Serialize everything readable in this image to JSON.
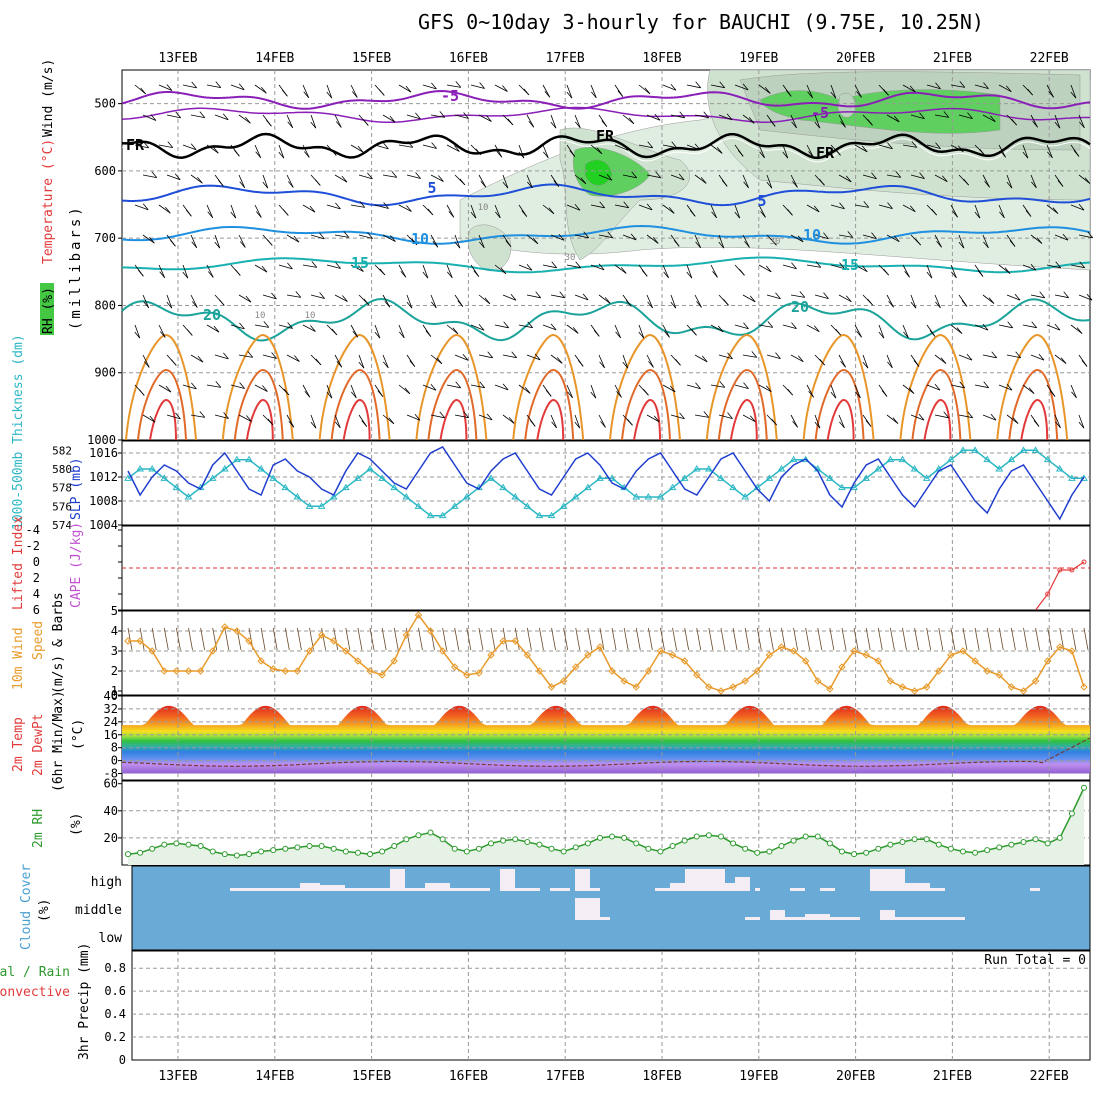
{
  "title": "GFS 0~10day 3-hourly for BAUCHI (9.75E, 10.25N)",
  "dates": [
    "13FEB",
    "14FEB",
    "15FEB",
    "16FEB",
    "17FEB",
    "18FEB",
    "19FEB",
    "20FEB",
    "21FEB",
    "22FEB"
  ],
  "panels": {
    "upper": {
      "ylabel_rh": "RH (%)",
      "ylabel_temp": "Temperature (°C)",
      "ylabel_wind": "Wind (m/s)",
      "ylabel_p": "(millibars)",
      "yticks": [
        500,
        600,
        700,
        800,
        900,
        1000
      ],
      "contour_labels": [
        "-5",
        "-5",
        "FR",
        "FR",
        "FR",
        "5",
        "5",
        "10",
        "10",
        "15",
        "15",
        "20",
        "20",
        "10",
        "10",
        "10",
        "30",
        "30"
      ]
    },
    "slp": {
      "ylabel_thick": "1000-500mb Thickness (dm)",
      "ylabel_slp": "SLP (mb)",
      "thick_ticks": [
        "582",
        "580",
        "578",
        "576",
        "574"
      ],
      "slp_ticks": [
        "1016",
        "1012",
        "1008",
        "1004"
      ]
    },
    "cape": {
      "ylabel_li": "Lifted Index",
      "ylabel_cape": "CAPE (J/kg)",
      "ticks": [
        "-4",
        "-2",
        "0",
        "2",
        "4",
        "6"
      ]
    },
    "wind10": {
      "ylabel": "10m Wind",
      "ylabel2": "Speed",
      "ylabel3": "(m/s) & Barbs",
      "ticks": [
        "5",
        "4",
        "3",
        "2",
        "1",
        "0"
      ]
    },
    "temp2m": {
      "ylabel1": "2m Temp",
      "ylabel2": "2m DewPt",
      "ylabel3": "(6hr Min/Max)",
      "ylabel4": "(°C)",
      "ticks": [
        "40",
        "32",
        "24",
        "16",
        "8",
        "0",
        "-8"
      ]
    },
    "rh2m": {
      "ylabel1": "2m RH",
      "ylabel2": "(%)",
      "ticks": [
        "60",
        "40",
        "20"
      ]
    },
    "cloud": {
      "ylabel1": "Cloud Cover",
      "ylabel2": "(%)",
      "levels": [
        "high",
        "middle",
        "low"
      ]
    },
    "precip": {
      "ylabel1": "Total / Rain",
      "ylabel2": "Convective",
      "ylabel3": "3hr Precip (mm)",
      "ticks": [
        "0.8",
        "0.6",
        "0.4",
        "0.2",
        "0"
      ],
      "run_total": "Run Total = 0"
    }
  },
  "colors": {
    "slp": "#1f3ecf",
    "thickness": "#2bb7c4",
    "wind10": "#e89a2a",
    "rh2m": "#2e9a2e",
    "cloud_bg": "#6aaad6",
    "rh_green": "#44c844",
    "contour_purple": "#8a1fb8",
    "contour_blue": "#1f4fd8",
    "contour_teal": "#1aa39a",
    "contour_orange": "#e8962a",
    "contour_red": "#e23a3a"
  },
  "chart_data": [
    {
      "type": "line",
      "name": "SLP",
      "x_label_times": "3-hourly",
      "ylim": [
        1004,
        1018
      ],
      "series": [
        {
          "name": "SLP",
          "values": [
            1013,
            1009,
            1012,
            1014,
            1013,
            1011,
            1010,
            1014,
            1016,
            1013,
            1010,
            1009,
            1014,
            1015,
            1013,
            1012,
            1010,
            1009,
            1013,
            1016,
            1015,
            1013,
            1011,
            1010,
            1013,
            1016,
            1017,
            1014,
            1011,
            1010,
            1013,
            1015,
            1016,
            1013,
            1010,
            1009,
            1012,
            1015,
            1016,
            1014,
            1011,
            1010,
            1013,
            1015,
            1016,
            1013,
            1010,
            1009,
            1012,
            1015,
            1016,
            1013,
            1010,
            1008,
            1012,
            1014,
            1015,
            1013,
            1009,
            1007,
            1011,
            1014,
            1015,
            1012,
            1009,
            1007,
            1010,
            1013,
            1014,
            1011,
            1008,
            1006,
            1010,
            1013,
            1014,
            1011,
            1008,
            1005,
            1009,
            1012
          ]
        }
      ]
    },
    {
      "type": "line",
      "name": "1000-500mb Thickness",
      "ylim": [
        574,
        583
      ],
      "series": [
        {
          "name": "Thickness",
          "values": [
            579,
            580,
            580,
            579,
            578,
            577,
            578,
            579,
            580,
            581,
            581,
            580,
            579,
            578,
            577,
            576,
            576,
            577,
            578,
            579,
            580,
            579,
            578,
            577,
            576,
            575,
            575,
            576,
            577,
            578,
            579,
            578,
            577,
            576,
            575,
            575,
            576,
            577,
            578,
            579,
            579,
            578,
            577,
            577,
            577,
            578,
            579,
            580,
            580,
            579,
            578,
            577,
            578,
            579,
            580,
            581,
            581,
            580,
            579,
            578,
            578,
            579,
            580,
            581,
            581,
            580,
            579,
            580,
            581,
            582,
            582,
            581,
            580,
            581,
            582,
            582,
            581,
            580,
            579,
            579
          ]
        }
      ]
    },
    {
      "type": "line",
      "name": "Lifted Index",
      "ylim": [
        -4,
        6
      ],
      "series": [
        {
          "name": "Lifted Index",
          "values": [
            6,
            6,
            6,
            6,
            6,
            6,
            6,
            6,
            6,
            6,
            6,
            6,
            6,
            6,
            6,
            6,
            6,
            6,
            6,
            6,
            6,
            6,
            6,
            6,
            6,
            6,
            6,
            6,
            6,
            6,
            6,
            6,
            6,
            6,
            6,
            6,
            6,
            6,
            6,
            6,
            6,
            6,
            6,
            6,
            6,
            6,
            6,
            6,
            6,
            6,
            6,
            6,
            6,
            6,
            6,
            6,
            6,
            6,
            6,
            6,
            6,
            6,
            6,
            6,
            6,
            6,
            6,
            6,
            6,
            6,
            6,
            6,
            6,
            6,
            6,
            6,
            4,
            1,
            1,
            0
          ]
        }
      ]
    },
    {
      "type": "line",
      "name": "10m Wind Speed",
      "ylim": [
        0.8,
        5
      ],
      "series": [
        {
          "name": "10m Wind",
          "values": [
            3.5,
            3.5,
            3.0,
            2.0,
            2.0,
            2.0,
            2.0,
            3.0,
            4.2,
            4.0,
            3.5,
            2.5,
            2.1,
            2.0,
            2.0,
            3.0,
            3.8,
            3.5,
            3.0,
            2.5,
            2.0,
            1.8,
            2.5,
            3.8,
            4.8,
            4.0,
            3.0,
            2.2,
            1.8,
            1.9,
            2.8,
            3.5,
            3.5,
            2.8,
            2.0,
            1.2,
            1.5,
            2.2,
            2.8,
            3.2,
            2.0,
            1.5,
            1.2,
            2.0,
            3.0,
            2.8,
            2.5,
            1.8,
            1.2,
            1.0,
            1.2,
            1.5,
            2.0,
            2.8,
            3.2,
            3.0,
            2.5,
            1.5,
            1.1,
            2.2,
            3.0,
            2.8,
            2.5,
            1.5,
            1.2,
            1.0,
            1.2,
            2.0,
            2.8,
            3.0,
            2.5,
            2.0,
            1.8,
            1.2,
            1.0,
            1.5,
            2.5,
            3.2,
            3.0,
            1.2
          ]
        }
      ]
    },
    {
      "type": "line",
      "name": "2m RH",
      "ylim": [
        0,
        62
      ],
      "series": [
        {
          "name": "2m RH",
          "values": [
            8,
            9,
            12,
            15,
            16,
            15,
            14,
            10,
            8,
            7,
            8,
            10,
            11,
            12,
            13,
            14,
            14,
            12,
            10,
            9,
            8,
            10,
            14,
            19,
            22,
            24,
            19,
            12,
            10,
            12,
            16,
            18,
            19,
            17,
            15,
            12,
            10,
            13,
            16,
            20,
            21,
            20,
            16,
            12,
            10,
            14,
            18,
            21,
            22,
            21,
            16,
            12,
            9,
            10,
            14,
            18,
            21,
            21,
            16,
            10,
            8,
            9,
            12,
            15,
            17,
            19,
            19,
            15,
            12,
            10,
            9,
            11,
            13,
            15,
            17,
            19,
            16,
            20,
            38,
            57
          ]
        }
      ]
    }
  ]
}
